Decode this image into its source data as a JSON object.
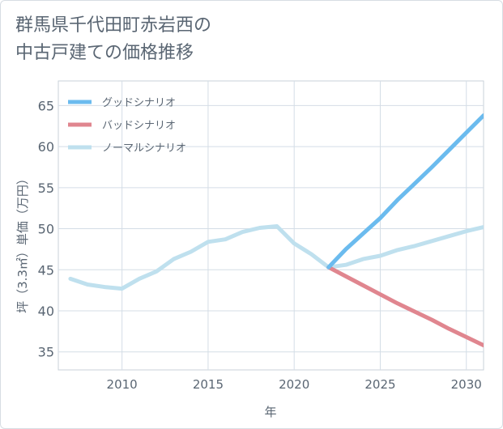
{
  "page": {
    "title_line1": "群馬県千代田町赤岩西の",
    "title_line2": "中古戸建ての価格推移"
  },
  "chart_data": {
    "type": "line",
    "title": "群馬県千代田町赤岩西の中古戸建ての価格推移",
    "xlabel": "年",
    "ylabel": "坪（3.3㎡）単価（万円）",
    "xlim": [
      2006.3,
      2031
    ],
    "ylim": [
      32.8,
      68
    ],
    "xticks": [
      2010,
      2015,
      2020,
      2025,
      2030
    ],
    "yticks": [
      35,
      40,
      45,
      50,
      55,
      60,
      65
    ],
    "grid": true,
    "legend_position": "top-left",
    "series": [
      {
        "name": "グッドシナリオ",
        "color": "#6bbbee",
        "x": [
          2022,
          2023,
          2024,
          2025,
          2026,
          2027,
          2028,
          2029,
          2030,
          2031
        ],
        "y": [
          45.3,
          47.5,
          49.4,
          51.3,
          53.5,
          55.5,
          57.5,
          59.6,
          61.7,
          63.8
        ]
      },
      {
        "name": "バッドシナリオ",
        "color": "#e0868f",
        "x": [
          2022,
          2023,
          2024,
          2025,
          2026,
          2027,
          2028,
          2029,
          2030,
          2031
        ],
        "y": [
          45.3,
          44.2,
          43.1,
          42.0,
          40.9,
          39.9,
          38.9,
          37.8,
          36.8,
          35.8
        ]
      },
      {
        "name": "ノーマルシナリオ",
        "color": "#bfe0ee",
        "x": [
          2007,
          2008,
          2009,
          2010,
          2011,
          2012,
          2013,
          2014,
          2015,
          2016,
          2017,
          2018,
          2019,
          2020,
          2021,
          2022,
          2023,
          2024,
          2025,
          2026,
          2027,
          2028,
          2029,
          2030,
          2031
        ],
        "y": [
          43.9,
          43.2,
          42.9,
          42.7,
          43.9,
          44.8,
          46.3,
          47.2,
          48.4,
          48.7,
          49.6,
          50.1,
          50.3,
          48.2,
          46.9,
          45.3,
          45.6,
          46.3,
          46.7,
          47.4,
          47.9,
          48.5,
          49.1,
          49.7,
          50.2
        ]
      }
    ]
  }
}
